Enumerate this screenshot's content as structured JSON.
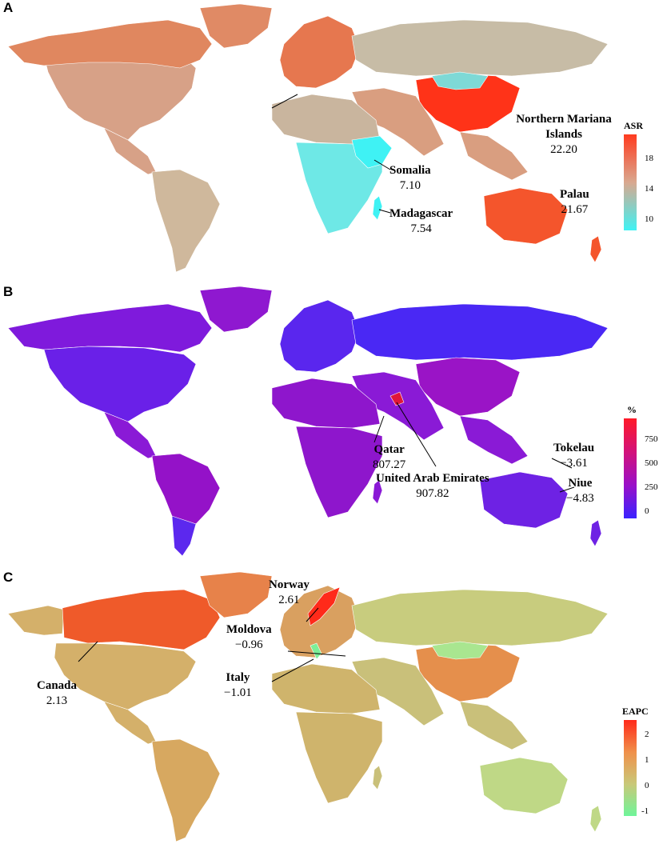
{
  "panels": [
    {
      "letter": "A",
      "legend": {
        "title": "ASR",
        "ticks": [
          "18",
          "14",
          "10"
        ],
        "gradient": [
          "#ff3b1f",
          "#d9a88f",
          "#3ff2f4"
        ]
      },
      "colors": {
        "ocean": "#ffffff",
        "base": "#c9b59e",
        "north_america": "#d7a187",
        "canada": "#e0875f",
        "europe": "#e6774f",
        "russia": "#c7bca6",
        "china": "#ff3318",
        "mongolia": "#7ed9d6",
        "africa": "#6ee8e6",
        "east_africa": "#3ff2f4",
        "south_asia": "#d99e80",
        "australia": "#f4552c",
        "south_america": "#cfb89c",
        "greenland": "#e08a65"
      },
      "annotations": [
        {
          "name": "Northern Mariana Islands",
          "value": "22.20"
        },
        {
          "name": "Palau",
          "value": "21.67"
        },
        {
          "name": "Somalia",
          "value": "7.10"
        },
        {
          "name": "Madagascar",
          "value": "7.54"
        }
      ]
    },
    {
      "letter": "B",
      "legend": {
        "title": "%",
        "ticks": [
          "750",
          "500",
          "250",
          "0"
        ],
        "gradient": [
          "#ff1a28",
          "#d3127a",
          "#9a10c8",
          "#3a22ff"
        ]
      },
      "colors": {
        "ocean": "#ffffff",
        "base": "#8a1ad6",
        "north_america": "#6a20e8",
        "canada": "#7f1adc",
        "europe": "#5a26ee",
        "russia": "#4a28f4",
        "china": "#9a14c6",
        "africa": "#8e16cc",
        "south_america": "#9412c8",
        "argentina": "#5c28ee",
        "australia": "#6e22e4",
        "greenland": "#8f18d0",
        "gulf": "#e0163a"
      },
      "annotations": [
        {
          "name": "Tokelau",
          "value": "−3.61"
        },
        {
          "name": "Niue",
          "value": "−4.83"
        },
        {
          "name": "Qatar",
          "value": "807.27"
        },
        {
          "name": "United Arab Emirates",
          "value": "907.82"
        }
      ]
    },
    {
      "letter": "C",
      "legend": {
        "title": "EAPC",
        "ticks": [
          "2",
          "1",
          "0",
          "-1"
        ],
        "gradient": [
          "#ff2a1a",
          "#f0904a",
          "#c9c878",
          "#6ff59a"
        ]
      },
      "colors": {
        "ocean": "#ffffff",
        "base": "#c9c07a",
        "north_america": "#d4b06a",
        "canada": "#ef5a2a",
        "europe": "#d9a060",
        "russia": "#c8cc7e",
        "china": "#e58f4c",
        "africa": "#cfb46c",
        "south_america": "#d7a860",
        "australia": "#bfd886",
        "greenland": "#e7824a",
        "norway": "#ff2a1a",
        "italy": "#7cef98",
        "mongolia": "#a9e690"
      },
      "annotations": [
        {
          "name": "Norway",
          "value": "2.61"
        },
        {
          "name": "Moldova",
          "value": "−0.96"
        },
        {
          "name": "Italy",
          "value": "−1.01"
        },
        {
          "name": "Canada",
          "value": "2.13"
        }
      ]
    }
  ]
}
